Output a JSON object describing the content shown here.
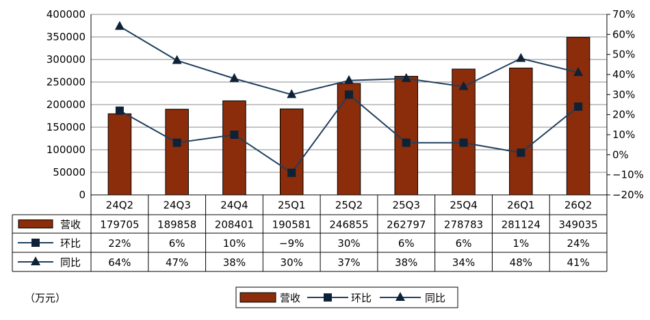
{
  "chart_data": {
    "type": "bar",
    "categories": [
      "24Q2",
      "24Q3",
      "24Q4",
      "25Q1",
      "25Q2",
      "25Q3",
      "25Q4",
      "26Q1",
      "26Q2"
    ],
    "series": [
      {
        "name": "营收",
        "kind": "bar",
        "axis": "left",
        "color": "#8B2C0A",
        "values": [
          179705,
          189858,
          208401,
          190581,
          246855,
          262797,
          278783,
          281124,
          349035
        ],
        "labels": [
          "179705",
          "189858",
          "208401",
          "190581",
          "246855",
          "262797",
          "278783",
          "281124",
          "349035"
        ]
      },
      {
        "name": "环比",
        "kind": "line",
        "marker": "square",
        "axis": "right",
        "color": "#1F3F5E",
        "values": [
          22,
          6,
          10,
          -9,
          30,
          6,
          6,
          1,
          24
        ],
        "labels": [
          "22%",
          "6%",
          "10%",
          "−9%",
          "30%",
          "6%",
          "6%",
          "1%",
          "24%"
        ]
      },
      {
        "name": "同比",
        "kind": "line",
        "marker": "triangle",
        "axis": "right",
        "color": "#1F3F5E",
        "values": [
          64,
          47,
          38,
          30,
          37,
          38,
          34,
          48,
          41
        ],
        "labels": [
          "64%",
          "47%",
          "38%",
          "30%",
          "37%",
          "38%",
          "34%",
          "48%",
          "41%"
        ]
      }
    ],
    "y_left": {
      "range": [
        0,
        400000
      ],
      "ticks": [
        "0",
        "50000",
        "100000",
        "150000",
        "200000",
        "250000",
        "300000",
        "350000",
        "400000"
      ]
    },
    "y_right": {
      "range": [
        -20,
        70
      ],
      "ticks": [
        "−20%",
        "−10%",
        "0%",
        "10%",
        "20%",
        "30%",
        "40%",
        "50%",
        "60%",
        "70%"
      ]
    },
    "grid": true,
    "data_table": true,
    "legend_position": "bottom",
    "unit_note": "（万元）"
  }
}
